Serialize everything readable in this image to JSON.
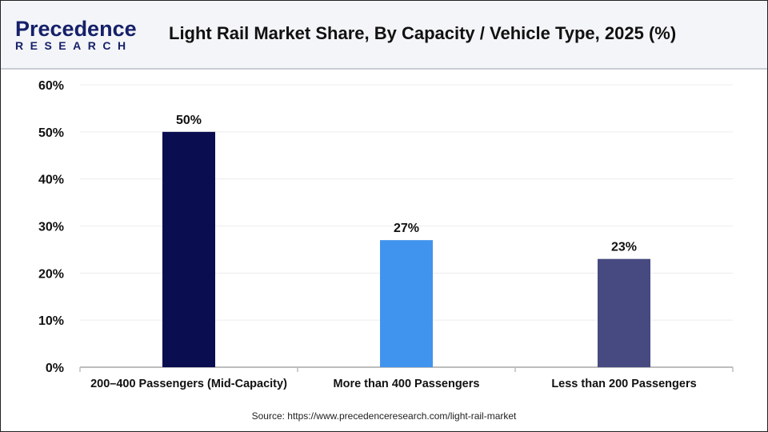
{
  "header": {
    "logo_line1": "Precedence",
    "logo_line2": "RESEARCH",
    "title": "Light Rail Market Share, By Capacity / Vehicle Type, 2025 (%)"
  },
  "source": "Source: https://www.precedenceresearch.com/light-rail-market",
  "chart_data": {
    "type": "bar",
    "title": "Light Rail Market Share, By Capacity / Vehicle Type, 2025 (%)",
    "categories": [
      "200–400 Passengers (Mid-Capacity)",
      "More than 400 Passengers",
      "Less than 200 Passengers"
    ],
    "values": [
      50,
      27,
      23
    ],
    "data_labels": [
      "50%",
      "27%",
      "23%"
    ],
    "colors": [
      "#0a0d4f",
      "#4194ee",
      "#464a80"
    ],
    "ylim": [
      0,
      60
    ],
    "yticks": [
      0,
      10,
      20,
      30,
      40,
      50,
      60
    ],
    "ytick_labels": [
      "0%",
      "10%",
      "20%",
      "30%",
      "40%",
      "50%",
      "60%"
    ],
    "grid": true,
    "xlabel": "",
    "ylabel": ""
  }
}
